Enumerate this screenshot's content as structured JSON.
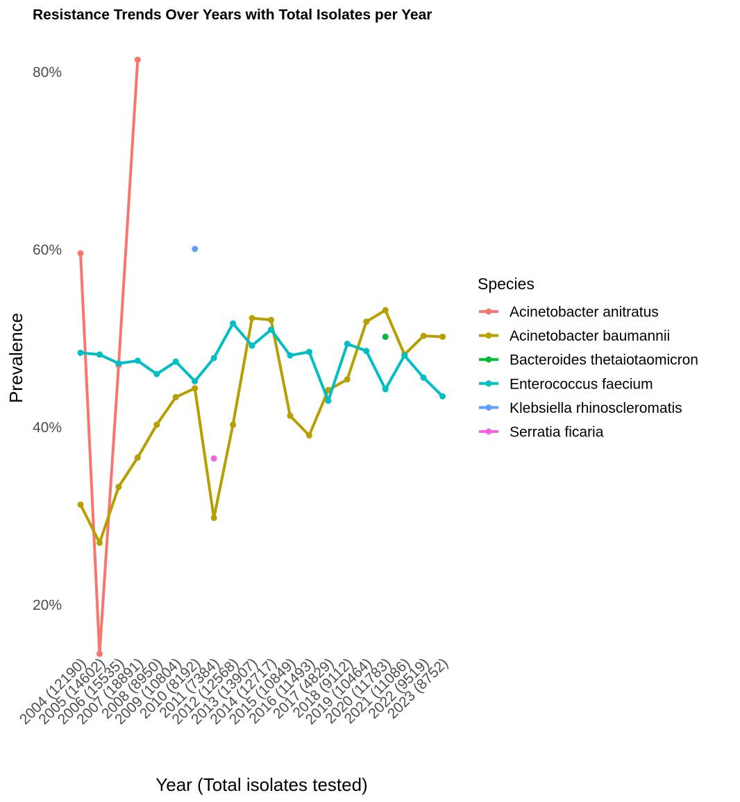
{
  "chart_data": {
    "type": "line",
    "title": "Resistance Trends Over Years with Total Isolates per Year",
    "xlabel": "Year (Total isolates tested)",
    "ylabel": "Prevalence",
    "categories": [
      "2004 (12190)",
      "2005 (14602)",
      "2006 (15535)",
      "2007 (18891)",
      "2008 (8950)",
      "2009 (10804)",
      "2010 (8192)",
      "2011 (7384)",
      "2012 (12568)",
      "2013 (13907)",
      "2014 (12717)",
      "2015 (10849)",
      "2016 (11493)",
      "2017 (4829)",
      "2018 (9112)",
      "2019 (10464)",
      "2020 (11783)",
      "2021 (11086)",
      "2022 (9519)",
      "2023 (8752)"
    ],
    "yticks": [
      0.2,
      0.4,
      0.6,
      0.8
    ],
    "ytick_labels": [
      "20%",
      "40%",
      "60%",
      "80%"
    ],
    "ylim": [
      0.135,
      0.83
    ],
    "grid": false,
    "legend": {
      "title": "Species",
      "position": "right"
    },
    "series": [
      {
        "name": "Acinetobacter anitratus",
        "color": "#F8766D",
        "values": [
          0.596,
          0.145,
          0.47,
          0.814,
          null,
          null,
          null,
          null,
          null,
          null,
          null,
          null,
          null,
          null,
          null,
          null,
          null,
          null,
          null,
          null
        ]
      },
      {
        "name": "Acinetobacter baumannii",
        "color": "#B79F00",
        "values": [
          0.313,
          0.27,
          0.333,
          0.366,
          0.403,
          0.434,
          0.444,
          0.298,
          0.403,
          0.523,
          0.521,
          0.413,
          0.391,
          0.442,
          0.454,
          0.519,
          0.532,
          0.482,
          0.503,
          0.502
        ]
      },
      {
        "name": "Bacteroides thetaiotaomicron",
        "color": "#00BA38",
        "values": [
          null,
          null,
          null,
          null,
          null,
          null,
          null,
          null,
          null,
          null,
          null,
          null,
          null,
          null,
          null,
          null,
          0.502,
          null,
          null,
          null
        ]
      },
      {
        "name": "Enterococcus faecium",
        "color": "#00BFC4",
        "values": [
          0.484,
          0.482,
          0.472,
          0.475,
          0.46,
          0.474,
          0.452,
          0.478,
          0.517,
          0.492,
          0.51,
          0.481,
          0.485,
          0.43,
          0.494,
          0.486,
          0.443,
          0.481,
          0.456,
          0.435
        ]
      },
      {
        "name": "Klebsiella rhinoscleromatis",
        "color": "#619CFF",
        "values": [
          null,
          null,
          null,
          null,
          null,
          null,
          0.601,
          null,
          null,
          null,
          null,
          null,
          null,
          null,
          null,
          null,
          null,
          null,
          null,
          null
        ]
      },
      {
        "name": "Serratia ficaria",
        "color": "#F564E3",
        "values": [
          null,
          null,
          null,
          null,
          null,
          null,
          null,
          0.365,
          null,
          null,
          null,
          null,
          null,
          null,
          null,
          null,
          null,
          null,
          null,
          null
        ]
      }
    ]
  }
}
